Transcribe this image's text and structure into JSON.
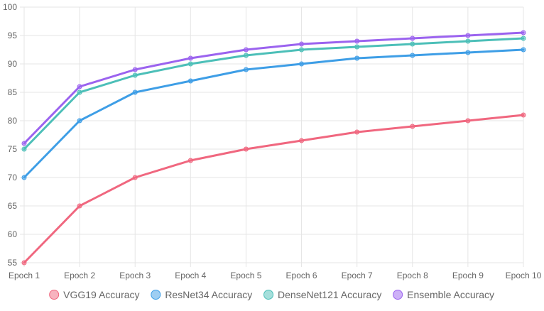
{
  "chart_data": {
    "type": "line",
    "categories": [
      "Epoch 1",
      "Epoch 2",
      "Epoch 3",
      "Epoch 4",
      "Epoch 5",
      "Epoch 6",
      "Epoch 7",
      "Epoch 8",
      "Epoch 9",
      "Epoch 10"
    ],
    "ylim": [
      55,
      100
    ],
    "yticks": [
      55,
      60,
      65,
      70,
      75,
      80,
      85,
      90,
      95,
      100
    ],
    "grid": true,
    "legend_position": "bottom",
    "series": [
      {
        "name": "VGG19 Accuracy",
        "color": "#f0677f",
        "values": [
          55,
          65,
          70,
          73,
          75,
          76.5,
          78,
          79,
          80,
          81
        ]
      },
      {
        "name": "ResNet34 Accuracy",
        "color": "#3e9ee6",
        "values": [
          70,
          80,
          85,
          87,
          89,
          90,
          91,
          91.5,
          92,
          92.5
        ]
      },
      {
        "name": "DenseNet121 Accuracy",
        "color": "#4cbfb8",
        "values": [
          75,
          85,
          88,
          90,
          91.5,
          92.5,
          93,
          93.5,
          94,
          94.5
        ]
      },
      {
        "name": "Ensemble Accuracy",
        "color": "#9b63ef",
        "values": [
          76,
          86,
          89,
          91,
          92.5,
          93.5,
          94,
          94.5,
          95,
          95.5
        ]
      }
    ]
  }
}
